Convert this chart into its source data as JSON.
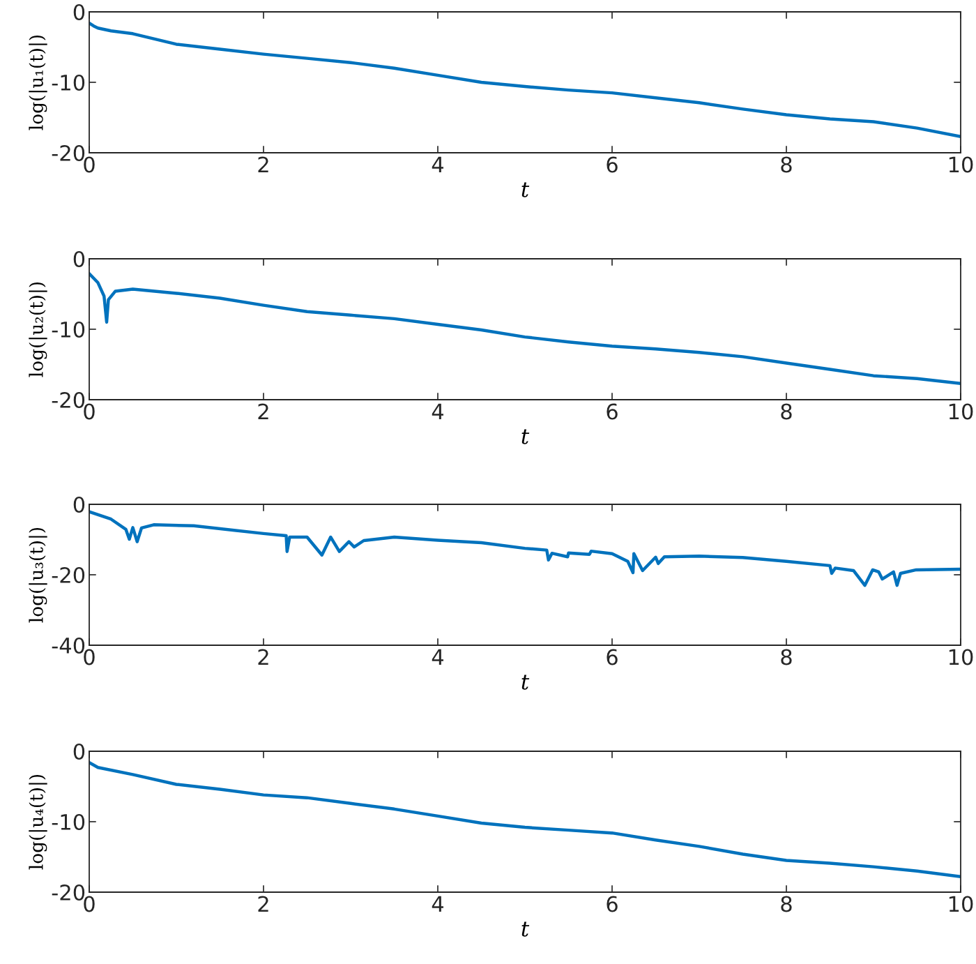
{
  "chart_data": [
    {
      "type": "line",
      "xlabel": "t",
      "ylabel": "log(|u₁(t)|)",
      "xlim": [
        0,
        10
      ],
      "ylim": [
        -20,
        0
      ],
      "xticks": [
        0,
        2,
        4,
        6,
        8,
        10
      ],
      "yticks": [
        -20,
        -10,
        0
      ],
      "grid": false,
      "legend": false,
      "x": [
        0,
        0.05,
        0.1,
        0.25,
        0.5,
        1,
        1.5,
        2,
        2.5,
        3,
        3.5,
        4,
        4.5,
        5,
        5.5,
        6,
        6.5,
        7,
        7.5,
        8,
        8.5,
        9,
        9.5,
        10
      ],
      "series": [
        {
          "color": "#0072bd",
          "values": [
            -1.6,
            -2.0,
            -2.3,
            -2.7,
            -3.1,
            -4.6,
            -5.3,
            -6.0,
            -6.6,
            -7.2,
            -8.0,
            -9.0,
            -10.0,
            -10.6,
            -11.1,
            -11.5,
            -12.2,
            -12.9,
            -13.8,
            -14.6,
            -15.2,
            -15.6,
            -16.5,
            -17.7
          ]
        }
      ]
    },
    {
      "type": "line",
      "xlabel": "t",
      "ylabel": "log(|u₂(t)|)",
      "xlim": [
        0,
        10
      ],
      "ylim": [
        -20,
        0
      ],
      "xticks": [
        0,
        2,
        4,
        6,
        8,
        10
      ],
      "yticks": [
        -20,
        -10,
        0
      ],
      "grid": false,
      "legend": false,
      "x": [
        0,
        0.1,
        0.17,
        0.2,
        0.22,
        0.3,
        0.5,
        1,
        1.5,
        2,
        2.5,
        3,
        3.5,
        4,
        4.5,
        5,
        5.5,
        6,
        6.5,
        7,
        7.5,
        8,
        8.5,
        9,
        9.5,
        10
      ],
      "series": [
        {
          "color": "#0072bd",
          "values": [
            -2.1,
            -3.4,
            -5.3,
            -9.0,
            -5.8,
            -4.6,
            -4.3,
            -4.9,
            -5.6,
            -6.6,
            -7.5,
            -8.0,
            -8.5,
            -9.3,
            -10.1,
            -11.1,
            -11.8,
            -12.4,
            -12.8,
            -13.3,
            -13.9,
            -14.8,
            -15.7,
            -16.6,
            -17.0,
            -17.7
          ]
        }
      ]
    },
    {
      "type": "line",
      "xlabel": "t",
      "ylabel": "log(|u₃(t)|)",
      "xlim": [
        0,
        10
      ],
      "ylim": [
        -40,
        0
      ],
      "xticks": [
        0,
        2,
        4,
        6,
        8,
        10
      ],
      "yticks": [
        -40,
        -20,
        0
      ],
      "grid": false,
      "legend": false,
      "x": [
        0,
        0.25,
        0.42,
        0.46,
        0.5,
        0.55,
        0.6,
        0.74,
        1.2,
        2,
        2.26,
        2.27,
        2.3,
        2.5,
        2.67,
        2.77,
        2.87,
        2.98,
        3.04,
        3.15,
        3.5,
        4,
        4.5,
        5,
        5.25,
        5.27,
        5.31,
        5.49,
        5.5,
        5.74,
        5.76,
        6.0,
        6.18,
        6.24,
        6.25,
        6.35,
        6.5,
        6.53,
        6.6,
        7,
        7.5,
        8,
        8.5,
        8.52,
        8.56,
        8.77,
        8.9,
        8.99,
        9.06,
        9.1,
        9.23,
        9.27,
        9.31,
        9.49,
        10
      ],
      "series": [
        {
          "color": "#0072bd",
          "values": [
            -2.1,
            -4.2,
            -7.1,
            -9.9,
            -6.6,
            -10.6,
            -6.7,
            -5.8,
            -6.1,
            -8.3,
            -8.9,
            -13.4,
            -9.3,
            -9.3,
            -14.4,
            -9.3,
            -13.4,
            -10.6,
            -12.1,
            -10.3,
            -9.3,
            -10.2,
            -10.9,
            -12.5,
            -13.0,
            -15.8,
            -13.9,
            -14.9,
            -13.8,
            -14.2,
            -13.3,
            -14.0,
            -16.2,
            -19.4,
            -14.0,
            -18.8,
            -15.0,
            -16.8,
            -14.9,
            -14.7,
            -15.1,
            -16.2,
            -17.4,
            -19.6,
            -18.1,
            -18.8,
            -23.0,
            -18.6,
            -19.2,
            -21.2,
            -19.2,
            -23.0,
            -19.6,
            -18.6,
            -18.4
          ]
        }
      ]
    },
    {
      "type": "line",
      "xlabel": "t",
      "ylabel": "log(|u₄(t)|)",
      "xlim": [
        0,
        10
      ],
      "ylim": [
        -20,
        0
      ],
      "xticks": [
        0,
        2,
        4,
        6,
        8,
        10
      ],
      "yticks": [
        -20,
        -10,
        0
      ],
      "grid": false,
      "legend": false,
      "x": [
        0,
        0.1,
        0.5,
        1,
        1.5,
        2,
        2.5,
        3,
        3.5,
        4,
        4.5,
        5,
        5.5,
        6,
        6.5,
        7,
        7.5,
        8,
        8.5,
        9,
        9.5,
        10
      ],
      "series": [
        {
          "color": "#0072bd",
          "values": [
            -1.6,
            -2.3,
            -3.3,
            -4.7,
            -5.4,
            -6.2,
            -6.6,
            -7.4,
            -8.2,
            -9.2,
            -10.2,
            -10.8,
            -11.2,
            -11.6,
            -12.6,
            -13.5,
            -14.6,
            -15.5,
            -15.9,
            -16.4,
            -17.0,
            -17.8
          ]
        }
      ]
    }
  ]
}
